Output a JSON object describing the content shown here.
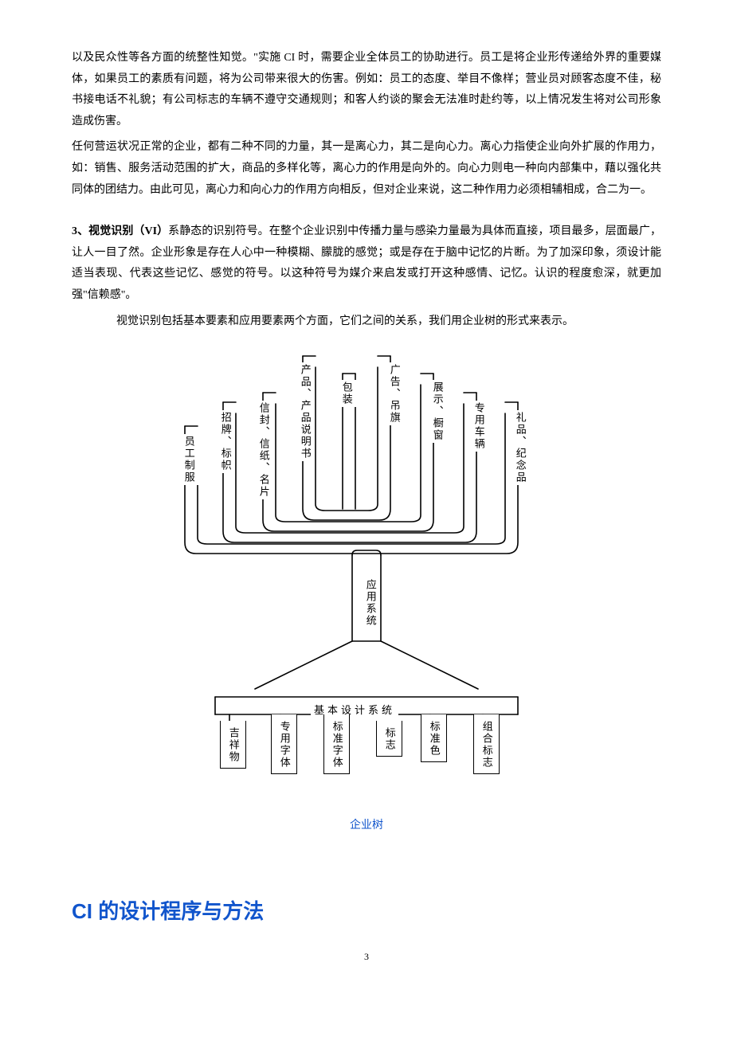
{
  "paragraphs": {
    "p1": "以及民众性等各方面的统整性知觉。\"实施 CI 时，需要企业全体员工的协助进行。员工是将企业形传递给外界的重要媒体，如果员工的素质有问题，将为公司带来很大的伤害。例如：员工的态度、举目不像样；营业员对顾客态度不佳，秘书接电话不礼貌；有公司标志的车辆不遵守交通规则；和客人约谈的聚会无法准时赴约等，以上情况发生将对公司形象造成伤害。",
    "p2": "任何营运状况正常的企业，都有二种不同的力量，其一是离心力，其二是向心力。离心力指使企业向外扩展的作用力，如：销售、服务活动范围的扩大，商品的多样化等，离心力的作用是向外的。向心力则电一种向内部集中，藉以强化共同体的团结力。由此可见，离心力和向心力的作用方向相反，但对企业来说，这二种作用力必须相辅相成，合二为一。",
    "p3_lead": "3、视觉识别（VI）",
    "p3_rest": "系静态的识别符号。在整个企业识别中传播力量与感染力量最为具体而直接，项目最多，层面最广，让人一目了然。企业形象是存在人心中一种模糊、朦胧的感觉；或是存在于脑中记忆的片断。为了加深印象，须设计能适当表现、代表这些记忆、感觉的符号。以这种符号为媒介来启发或打开这种感情、记忆。认识的程度愈深，就更加强\"信赖感\"。",
    "p4": "视觉识别包括基本要素和应用要素两个方面，它们之间的关系，我们用企业树的形式来表示。"
  },
  "tree": {
    "application_branches": [
      "员工制服",
      "招牌、标帜",
      "信封、信纸、名片",
      "产品、产品说明书",
      "包装",
      "广告、吊旗",
      "展示、橱窗",
      "专用车辆",
      "礼品、纪念品"
    ],
    "application_label": "应用系统",
    "basic_label": "基本设计系统",
    "basic_branches": [
      "吉祥物",
      "专用字体",
      "标准字体",
      "标志",
      "标准色",
      "组合标志"
    ],
    "stroke": "#000000",
    "stroke_width": 1.6,
    "caption": "企业树"
  },
  "heading": "CI 的设计程序与方法",
  "page_number": "3",
  "colors": {
    "text": "#000000",
    "accent": "#1155cc",
    "background": "#ffffff"
  }
}
